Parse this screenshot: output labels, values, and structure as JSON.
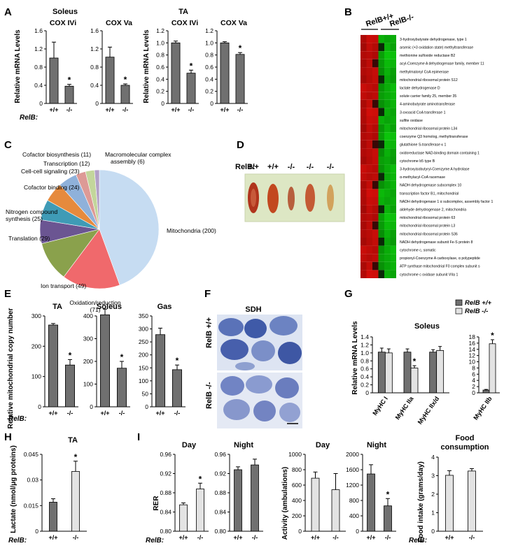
{
  "panels": {
    "A": {
      "letter": "A"
    },
    "B": {
      "letter": "B",
      "header_wt": "RelB+/+",
      "header_ko": "RelB-/-"
    },
    "C": {
      "letter": "C"
    },
    "D": {
      "letter": "D",
      "genotype_prefix": "RelB:",
      "lanes": [
        "+/+",
        "+/+",
        "-/-",
        "-/-",
        "-/-"
      ]
    },
    "E": {
      "letter": "E"
    },
    "F": {
      "letter": "F",
      "title": "SDH",
      "row_wt": "RelB +/+",
      "row_ko": "RelB -/-"
    },
    "G": {
      "letter": "G"
    },
    "H": {
      "letter": "H"
    },
    "I": {
      "letter": "I"
    }
  },
  "genotype_prefix": "RelB:",
  "significance_mark": "*",
  "colors": {
    "dark_bar": "#707070",
    "light_bar": "#e3e3e3",
    "heat_red": "#d01818",
    "heat_green": "#18d018"
  },
  "chart_data": [
    {
      "id": "A-soleus",
      "type": "bar",
      "group_title": "Soleus",
      "ylabel": "Relative mRNA Levels",
      "ylim": [
        0,
        1.6
      ],
      "yticks": [
        "0",
        "0.4",
        "0.8",
        "1.2",
        "1.6"
      ],
      "subplots": [
        {
          "title": "COX IVi",
          "categories": [
            "+/+",
            "-/-"
          ],
          "values": [
            1.0,
            0.38
          ],
          "errors": [
            0.35,
            0.04
          ],
          "significant": [
            false,
            true
          ]
        },
        {
          "title": "COX Va",
          "categories": [
            "+/+",
            "-/-"
          ],
          "values": [
            1.02,
            0.4
          ],
          "errors": [
            0.22,
            0.03
          ],
          "significant": [
            false,
            true
          ]
        }
      ]
    },
    {
      "id": "A-ta",
      "type": "bar",
      "group_title": "TA",
      "ylabel": "Relative mRNA Levels",
      "ylim": [
        0,
        1.2
      ],
      "yticks": [
        "0",
        "0.2",
        "0.4",
        "0.6",
        "0.8",
        "1.0",
        "1.2"
      ],
      "subplots": [
        {
          "title": "COX IVi",
          "categories": [
            "+/+",
            "-/-"
          ],
          "values": [
            1.0,
            0.5
          ],
          "errors": [
            0.03,
            0.05
          ],
          "significant": [
            false,
            true
          ]
        },
        {
          "title": "COX Va",
          "categories": [
            "+/+",
            "-/-"
          ],
          "values": [
            1.0,
            0.81
          ],
          "errors": [
            0.02,
            0.03
          ],
          "significant": [
            false,
            true
          ]
        }
      ]
    },
    {
      "id": "B-heatmap",
      "type": "heatmap",
      "columns": [
        "RelB+/+",
        "RelB+/+",
        "RelB+/+",
        "RelB-/-",
        "RelB-/-",
        "RelB-/-"
      ],
      "rows": [
        "3-hydroxybutyrate dehydrogenase, type 1",
        "arsenic (+3 oxidation state) methyltransferase",
        "methionine sulfoxide reductase B2",
        "acyl-Coenzyme A dehydrogenase family, member 11",
        "methylmalonyl CoA epimerase",
        "mitochondrial ribosomal protein S12",
        "lactate dehydrogenase D",
        "solute carrier family 25, member 35",
        "4-aminobutyrate aminotransferase",
        "3-oxoacid CoA transferase 1",
        "sulfite oxidase",
        "mitochondrial ribosomal protein L34",
        "coenzyme Q3 homolog, methyltransferase",
        "glutathione S-transferase κ 1",
        "oxidoreductase NAD-binding domain containing 1",
        "cytochrome b5 type B",
        "3-hydroxyisobutyryl-Coenzyme A hydrolase",
        "α-methylacyl-CoA racemase",
        "NADH dehydrogenase subcomplex 10",
        "transcription factor B1, mitochondrial",
        "NADH dehydrogenase 1 α subcomplex, assembly factor 1",
        "aldehyde dehydrogenase 2, mitochondria",
        "mitochondrial ribosomal protein 63",
        "mitochondrial ribosomal protein L3",
        "mitochondrial ribosomal protein S36",
        "NADH dehydrogenase subunit Fe-S protein 8",
        "cytochrome c, somatic",
        "propionyl-Coenzyme A carboxylase, α polypeptide",
        "ATP synthase mitochondrial F0 complex subunit s",
        "cytochrome c oxidase subunit VIIa 1"
      ]
    },
    {
      "id": "C-pie",
      "type": "pie",
      "slices": [
        {
          "label": "Mitochondria (200)",
          "value": 200,
          "color": "#c6dcf2"
        },
        {
          "label": "Oxidation/reduction (71)",
          "value": 71,
          "color": "#f0696c"
        },
        {
          "label": "Ion transport (49)",
          "value": 49,
          "color": "#8aa14c"
        },
        {
          "label": "Translation (29)",
          "value": 29,
          "color": "#6b5592"
        },
        {
          "label": "Nitrogen compound synthesis (25)",
          "value": 25,
          "color": "#3f9bb6"
        },
        {
          "label": "Cofactor binding (24)",
          "value": 24,
          "color": "#e68a3d"
        },
        {
          "label": "Cell-cell signaling (23)",
          "value": 23,
          "color": "#8fb1da"
        },
        {
          "label": "Transcription (12)",
          "value": 12,
          "color": "#dd9a96"
        },
        {
          "label": "Cofactor biosynthesis (11)",
          "value": 11,
          "color": "#c3d69b"
        },
        {
          "label": "Macromolecular complex assembly (6)",
          "value": 6,
          "color": "#b2a1c7"
        }
      ]
    },
    {
      "id": "E-mtdna",
      "type": "bar",
      "ylabel": "Relative mitochondrial copy number",
      "subplots": [
        {
          "title": "TA",
          "ylim": [
            0,
            300
          ],
          "yticks": [
            "0",
            "100",
            "200",
            "300"
          ],
          "categories": [
            "+/+",
            "-/-"
          ],
          "values": [
            270,
            138
          ],
          "errors": [
            5,
            18
          ],
          "significant": [
            false,
            true
          ]
        },
        {
          "title": "Soleus",
          "ylim": [
            0,
            400
          ],
          "yticks": [
            "0",
            "100",
            "200",
            "300",
            "400"
          ],
          "categories": [
            "+/+",
            "-/-"
          ],
          "values": [
            405,
            170
          ],
          "errors": [
            25,
            30
          ],
          "significant": [
            false,
            true
          ]
        },
        {
          "title": "Gas",
          "ylim": [
            0,
            350
          ],
          "yticks": [
            "0",
            "50",
            "100",
            "150",
            "200",
            "250",
            "300",
            "350"
          ],
          "categories": [
            "+/+",
            "-/-"
          ],
          "values": [
            278,
            143
          ],
          "errors": [
            25,
            18
          ],
          "significant": [
            false,
            true
          ]
        }
      ]
    },
    {
      "id": "G-myhc",
      "type": "bar",
      "title": "Soleus",
      "ylabel": "Relative mRNA Levels",
      "legend": [
        "RelB +/+",
        "RelB -/-"
      ],
      "legend_position": "top-right",
      "subplots": [
        {
          "ylim": [
            0,
            1.4
          ],
          "yticks": [
            "0",
            "0.2",
            "0.4",
            "0.6",
            "0.8",
            "1.0",
            "1.2",
            "1.4"
          ],
          "categories": [
            "MyHC I",
            "MyHC IIa",
            "MyHC IIx/d"
          ],
          "series": [
            {
              "name": "RelB +/+",
              "values": [
                1.02,
                1.02,
                1.02
              ],
              "errors": [
                0.1,
                0.08,
                0.06
              ],
              "significant": [
                false,
                false,
                false
              ]
            },
            {
              "name": "RelB -/-",
              "values": [
                1.0,
                0.62,
                1.06
              ],
              "errors": [
                0.1,
                0.06,
                0.1
              ],
              "significant": [
                false,
                true,
                false
              ]
            }
          ]
        },
        {
          "ylim": [
            0,
            18
          ],
          "yticks": [
            "0",
            "2",
            "4",
            "6",
            "8",
            "10",
            "12",
            "14",
            "16",
            "18"
          ],
          "categories": [
            "MyHC IIb"
          ],
          "series": [
            {
              "name": "RelB +/+",
              "values": [
                0.9
              ],
              "errors": [
                0.2
              ],
              "significant": [
                false
              ]
            },
            {
              "name": "RelB -/-",
              "values": [
                15.8
              ],
              "errors": [
                1.3
              ],
              "significant": [
                true
              ]
            }
          ]
        }
      ]
    },
    {
      "id": "H-lactate",
      "type": "bar",
      "title": "TA",
      "ylabel": "Lactate (nmol/μg proteins)",
      "ylim": [
        0,
        0.045
      ],
      "yticks": [
        "0",
        "0.015",
        "0.03",
        "0.045"
      ],
      "categories": [
        "+/+",
        "-/-"
      ],
      "values": [
        0.017,
        0.035
      ],
      "errors": [
        0.002,
        0.006
      ],
      "significant": [
        false,
        true
      ]
    },
    {
      "id": "I-rer",
      "type": "bar",
      "ylabel": "RER",
      "subplots": [
        {
          "title": "Day",
          "ylim": [
            0.8,
            0.96
          ],
          "yticks": [
            "0.80",
            "0.84",
            "0.88",
            "0.92",
            "0.96"
          ],
          "categories": [
            "+/+",
            "-/-"
          ],
          "values": [
            0.855,
            0.888
          ],
          "errors": [
            0.004,
            0.012
          ],
          "significant": [
            false,
            true
          ]
        },
        {
          "title": "Night",
          "ylim": [
            0.8,
            0.96
          ],
          "yticks": [
            "0.80",
            "0.84",
            "0.88",
            "0.92",
            "0.96"
          ],
          "categories": [
            "+/+",
            "-/-"
          ],
          "values": [
            0.928,
            0.938
          ],
          "errors": [
            0.006,
            0.012
          ],
          "significant": [
            false,
            false
          ]
        }
      ]
    },
    {
      "id": "I-activity",
      "type": "bar",
      "ylabel": "Activity (ambulations)",
      "subplots": [
        {
          "title": "Day",
          "ylim": [
            0,
            1000
          ],
          "yticks": [
            "0",
            "200",
            "400",
            "600",
            "800",
            "1000"
          ],
          "categories": [
            "+/+",
            "-/-"
          ],
          "values": [
            690,
            540
          ],
          "errors": [
            80,
            210
          ],
          "significant": [
            false,
            false
          ]
        },
        {
          "title": "Night",
          "ylim": [
            0,
            2000
          ],
          "yticks": [
            "0",
            "400",
            "800",
            "1200",
            "1600",
            "2000"
          ],
          "categories": [
            "+/+",
            "-/-"
          ],
          "values": [
            1490,
            660
          ],
          "errors": [
            240,
            190
          ],
          "significant": [
            false,
            true
          ]
        }
      ]
    },
    {
      "id": "I-food",
      "type": "bar",
      "title": "Food consumption",
      "ylabel": "Food intake (grams/day)",
      "ylim": [
        0,
        4
      ],
      "yticks": [
        "0",
        "1",
        "2",
        "3",
        "4"
      ],
      "categories": [
        "+/+",
        "-/-"
      ],
      "values": [
        3.02,
        3.25
      ],
      "errors": [
        0.25,
        0.13
      ],
      "significant": [
        false,
        false
      ]
    }
  ]
}
